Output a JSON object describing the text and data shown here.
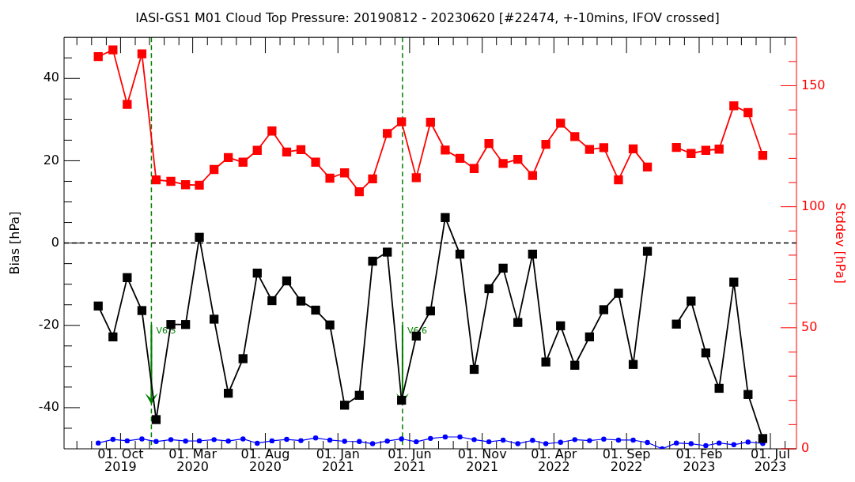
{
  "chart_data": {
    "type": "line",
    "title": "IASI-GS1 M01 Cloud Top Pressure: 20190812 - 20230620 [#22474, +-10mins, IFOV crossed]",
    "ylabel": "Bias [hPa]",
    "y2label": "Stddev [hPa]",
    "x": [
      "2019-08-15",
      "2019-09-15",
      "2019-10-15",
      "2019-11-15",
      "2019-12-15",
      "2020-01-15",
      "2020-02-15",
      "2020-03-15",
      "2020-04-15",
      "2020-05-15",
      "2020-06-15",
      "2020-07-15",
      "2020-08-15",
      "2020-09-15",
      "2020-10-15",
      "2020-11-15",
      "2020-12-15",
      "2021-01-15",
      "2021-02-15",
      "2021-03-15",
      "2021-04-15",
      "2021-05-15",
      "2021-06-15",
      "2021-07-15",
      "2021-08-15",
      "2021-09-15",
      "2021-10-15",
      "2021-11-15",
      "2021-12-15",
      "2022-01-15",
      "2022-02-15",
      "2022-03-15",
      "2022-04-15",
      "2022-05-15",
      "2022-06-15",
      "2022-07-15",
      "2022-08-15",
      "2022-09-15",
      "2022-10-15",
      "2022-11-15",
      "2022-12-15",
      "2023-01-15",
      "2023-02-15",
      "2023-03-15",
      "2023-04-15",
      "2023-05-15",
      "2023-06-15"
    ],
    "series": [
      {
        "color": "#000000",
        "marker": "square",
        "axis": "y",
        "values": [
          -15.3,
          -22.8,
          -8.4,
          -16.4,
          -42.9,
          -19.8,
          -19.8,
          1.4,
          -18.5,
          -36.5,
          -28.1,
          -7.3,
          -14,
          -9.2,
          -14.1,
          -16.3,
          -19.9,
          -39.4,
          -37,
          -4.4,
          -2.2,
          -38.2,
          -22.6,
          -16.5,
          6.2,
          -2.7,
          -30.7,
          -11.1,
          -6.1,
          -19.3,
          -2.7,
          -28.9,
          -20.1,
          -29.7,
          -22.8,
          -16.2,
          -12.2,
          -29.5,
          -2,
          null,
          -19.7,
          -14.1,
          -26.7,
          -35.3,
          -9.5,
          -36.8,
          -47.5
        ]
      },
      {
        "color": "#ff0000",
        "marker": "square",
        "axis": "y2",
        "values": [
          162,
          164.8,
          142.3,
          163.2,
          111.1,
          110.5,
          109.1,
          108.9,
          115.4,
          120.3,
          118.4,
          123.3,
          131.3,
          122.6,
          123.6,
          118.4,
          111.8,
          114,
          106.2,
          111.5,
          130.3,
          135.1,
          112,
          134.9,
          123.4,
          120,
          115.8,
          126.1,
          117.9,
          119.6,
          112.9,
          125.8,
          134.5,
          129,
          123.7,
          124.4,
          111.1,
          123.9,
          116.4,
          null,
          124.5,
          122,
          123.3,
          123.8,
          141.7,
          138.9,
          121.2
        ]
      },
      {
        "color": "#0000ff",
        "marker": "circle",
        "axis": "y2",
        "values": [
          2.4,
          3.9,
          3.3,
          4.1,
          3,
          3.8,
          3.2,
          3.3,
          3.8,
          3.2,
          4.1,
          2.3,
          3.3,
          3.9,
          3.4,
          4.5,
          3.6,
          3.1,
          3,
          2.1,
          3.2,
          4.1,
          2.9,
          4.3,
          4.9,
          4.9,
          3.8,
          2.9,
          3.6,
          2.1,
          3.5,
          2.1,
          2.7,
          3.8,
          3.4,
          4,
          3.6,
          3.6,
          2.6,
          0,
          2.4,
          2.1,
          1.3,
          2.4,
          1.7,
          2.8,
          2.2
        ]
      }
    ],
    "xlim": [
      "2019-06-04",
      "2023-08-25"
    ],
    "xticks": [
      {
        "value": "2019-07-01",
        "label": null
      },
      {
        "value": "2019-08-01",
        "label": null
      },
      {
        "value": "2019-09-01",
        "label": null
      },
      {
        "value": "2019-10-01",
        "label": "01. Oct\n2019"
      },
      {
        "value": "2019-11-01",
        "label": null
      },
      {
        "value": "2019-12-01",
        "label": null
      },
      {
        "value": "2020-01-01",
        "label": null
      },
      {
        "value": "2020-02-01",
        "label": null
      },
      {
        "value": "2020-03-01",
        "label": "01. Mar\n2020"
      },
      {
        "value": "2020-04-01",
        "label": null
      },
      {
        "value": "2020-05-01",
        "label": null
      },
      {
        "value": "2020-06-01",
        "label": null
      },
      {
        "value": "2020-07-01",
        "label": null
      },
      {
        "value": "2020-08-01",
        "label": "01. Aug\n2020"
      },
      {
        "value": "2020-09-01",
        "label": null
      },
      {
        "value": "2020-10-01",
        "label": null
      },
      {
        "value": "2020-11-01",
        "label": null
      },
      {
        "value": "2020-12-01",
        "label": null
      },
      {
        "value": "2021-01-01",
        "label": "01. Jan\n2021"
      },
      {
        "value": "2021-02-01",
        "label": null
      },
      {
        "value": "2021-03-01",
        "label": null
      },
      {
        "value": "2021-04-01",
        "label": null
      },
      {
        "value": "2021-05-01",
        "label": null
      },
      {
        "value": "2021-06-01",
        "label": "01. Jun\n2021"
      },
      {
        "value": "2021-07-01",
        "label": null
      },
      {
        "value": "2021-08-01",
        "label": null
      },
      {
        "value": "2021-09-01",
        "label": null
      },
      {
        "value": "2021-10-01",
        "label": null
      },
      {
        "value": "2021-11-01",
        "label": "01. Nov\n2021"
      },
      {
        "value": "2021-12-01",
        "label": null
      },
      {
        "value": "2022-01-01",
        "label": null
      },
      {
        "value": "2022-02-01",
        "label": null
      },
      {
        "value": "2022-03-01",
        "label": null
      },
      {
        "value": "2022-04-01",
        "label": "01. Apr\n2022"
      },
      {
        "value": "2022-05-01",
        "label": null
      },
      {
        "value": "2022-06-01",
        "label": null
      },
      {
        "value": "2022-07-01",
        "label": null
      },
      {
        "value": "2022-08-01",
        "label": null
      },
      {
        "value": "2022-09-01",
        "label": "01. Sep\n2022"
      },
      {
        "value": "2022-10-01",
        "label": null
      },
      {
        "value": "2022-11-01",
        "label": null
      },
      {
        "value": "2022-12-01",
        "label": null
      },
      {
        "value": "2023-01-01",
        "label": null
      },
      {
        "value": "2023-02-01",
        "label": "01. Feb\n2023"
      },
      {
        "value": "2023-03-01",
        "label": null
      },
      {
        "value": "2023-04-01",
        "label": null
      },
      {
        "value": "2023-05-01",
        "label": null
      },
      {
        "value": "2023-06-01",
        "label": null
      },
      {
        "value": "2023-07-01",
        "label": "01. Jul\n2023"
      },
      {
        "value": "2023-08-01",
        "label": null
      }
    ],
    "ylim": [
      -50,
      50
    ],
    "yticks": [
      {
        "value": -45,
        "label": null
      },
      -40,
      {
        "value": -35,
        "label": null
      },
      {
        "value": -30,
        "label": null
      },
      {
        "value": -25,
        "label": null
      },
      -20,
      {
        "value": -15,
        "label": null
      },
      {
        "value": -10,
        "label": null
      },
      {
        "value": -5,
        "label": null
      },
      0,
      {
        "value": 5,
        "label": null
      },
      {
        "value": 10,
        "label": null
      },
      {
        "value": 15,
        "label": null
      },
      20,
      {
        "value": 25,
        "label": null
      },
      {
        "value": 30,
        "label": null
      },
      {
        "value": 35,
        "label": null
      },
      40,
      {
        "value": 45,
        "label": null
      }
    ],
    "y2lim": [
      0,
      170
    ],
    "y2ticks": [
      0,
      {
        "value": 10,
        "label": null
      },
      {
        "value": 20,
        "label": null
      },
      {
        "value": 30,
        "label": null
      },
      {
        "value": 40,
        "label": null
      },
      50,
      {
        "value": 60,
        "label": null
      },
      {
        "value": 70,
        "label": null
      },
      {
        "value": 80,
        "label": null
      },
      {
        "value": 90,
        "label": null
      },
      100,
      {
        "value": 110,
        "label": null
      },
      {
        "value": 120,
        "label": null
      },
      {
        "value": 130,
        "label": null
      },
      {
        "value": 140,
        "label": null
      },
      150,
      {
        "value": 160,
        "label": null
      }
    ],
    "ref_lines": [
      {
        "axis": "y",
        "value": 0,
        "color": "#000000",
        "line_style": "dashed"
      },
      {
        "axis": "x",
        "value": "2019-12-05",
        "color": "#008000",
        "line_style": "dashed"
      },
      {
        "axis": "x",
        "value": "2021-05-17",
        "color": "#008000",
        "line_style": "dashed"
      }
    ],
    "annotations": [
      {
        "text": "V6.5",
        "x": "2019-12-05",
        "y": -20
      },
      {
        "text": "V6.6",
        "x": "2021-05-17",
        "y": -20
      }
    ]
  }
}
